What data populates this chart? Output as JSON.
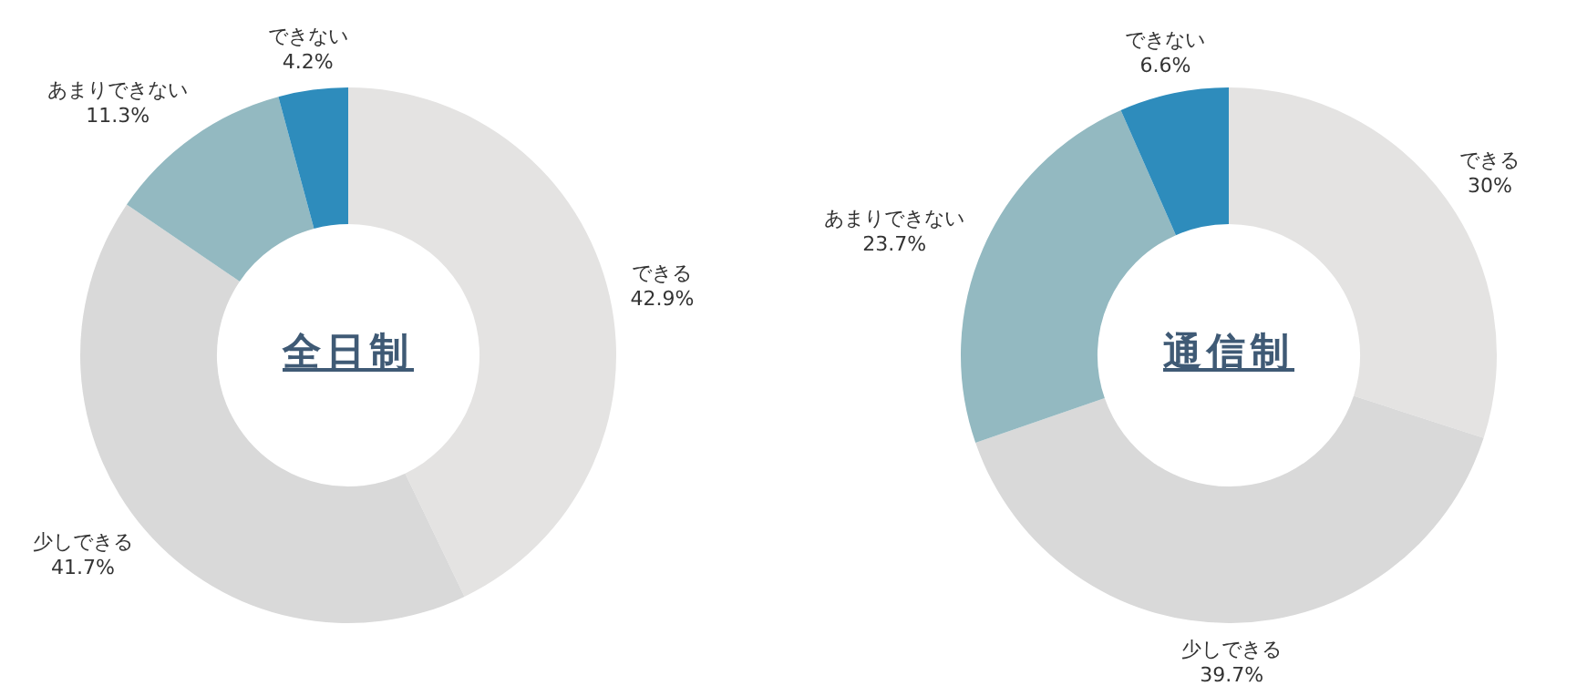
{
  "chart_data": [
    {
      "type": "donut",
      "title": "全日制",
      "categories": [
        "できる",
        "少しできる",
        "あまりできない",
        "できない"
      ],
      "values": [
        42.9,
        41.7,
        11.3,
        4.2
      ],
      "value_labels": [
        "42.9%",
        "41.7%",
        "11.3%",
        "4.2%"
      ],
      "colors": [
        "#e4e3e2",
        "#d9d9d9",
        "#93b9c1",
        "#2e8cbc"
      ],
      "legend": false
    },
    {
      "type": "donut",
      "title": "通信制",
      "categories": [
        "できる",
        "少しできる",
        "あまりできない",
        "できない"
      ],
      "values": [
        30,
        39.7,
        23.7,
        6.6
      ],
      "value_labels": [
        "30%",
        "39.7%",
        "23.7%",
        "6.6%"
      ],
      "colors": [
        "#e4e3e2",
        "#d9d9d9",
        "#93b9c1",
        "#2e8cbc"
      ],
      "legend": false
    }
  ]
}
